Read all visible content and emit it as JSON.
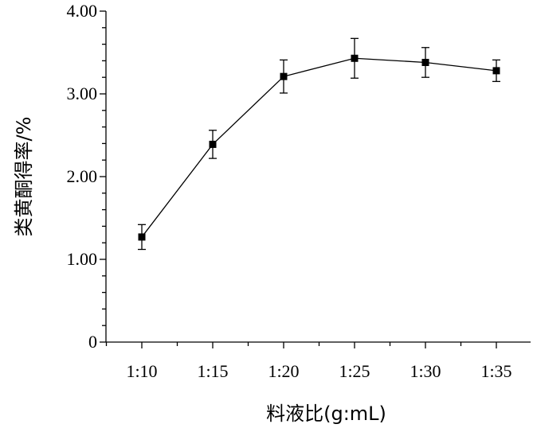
{
  "chart_data": {
    "type": "line",
    "categories": [
      "1:10",
      "1:15",
      "1:20",
      "1:25",
      "1:30",
      "1:35"
    ],
    "series": [
      {
        "values": [
          1.27,
          2.39,
          3.21,
          3.43,
          3.38,
          3.28
        ],
        "errors": [
          0.15,
          0.17,
          0.2,
          0.24,
          0.18,
          0.13
        ],
        "marker": "square",
        "color": "#000000"
      }
    ],
    "xlabel": "料液比(g:mL)",
    "ylabel": "类黄酮得率/%",
    "ylim": [
      0,
      4
    ],
    "yticks": [
      0,
      1,
      2,
      3,
      4
    ],
    "ytick_labels": [
      "0",
      "1.00",
      "2.00",
      "3.00",
      "4.00"
    ],
    "grid": false
  }
}
